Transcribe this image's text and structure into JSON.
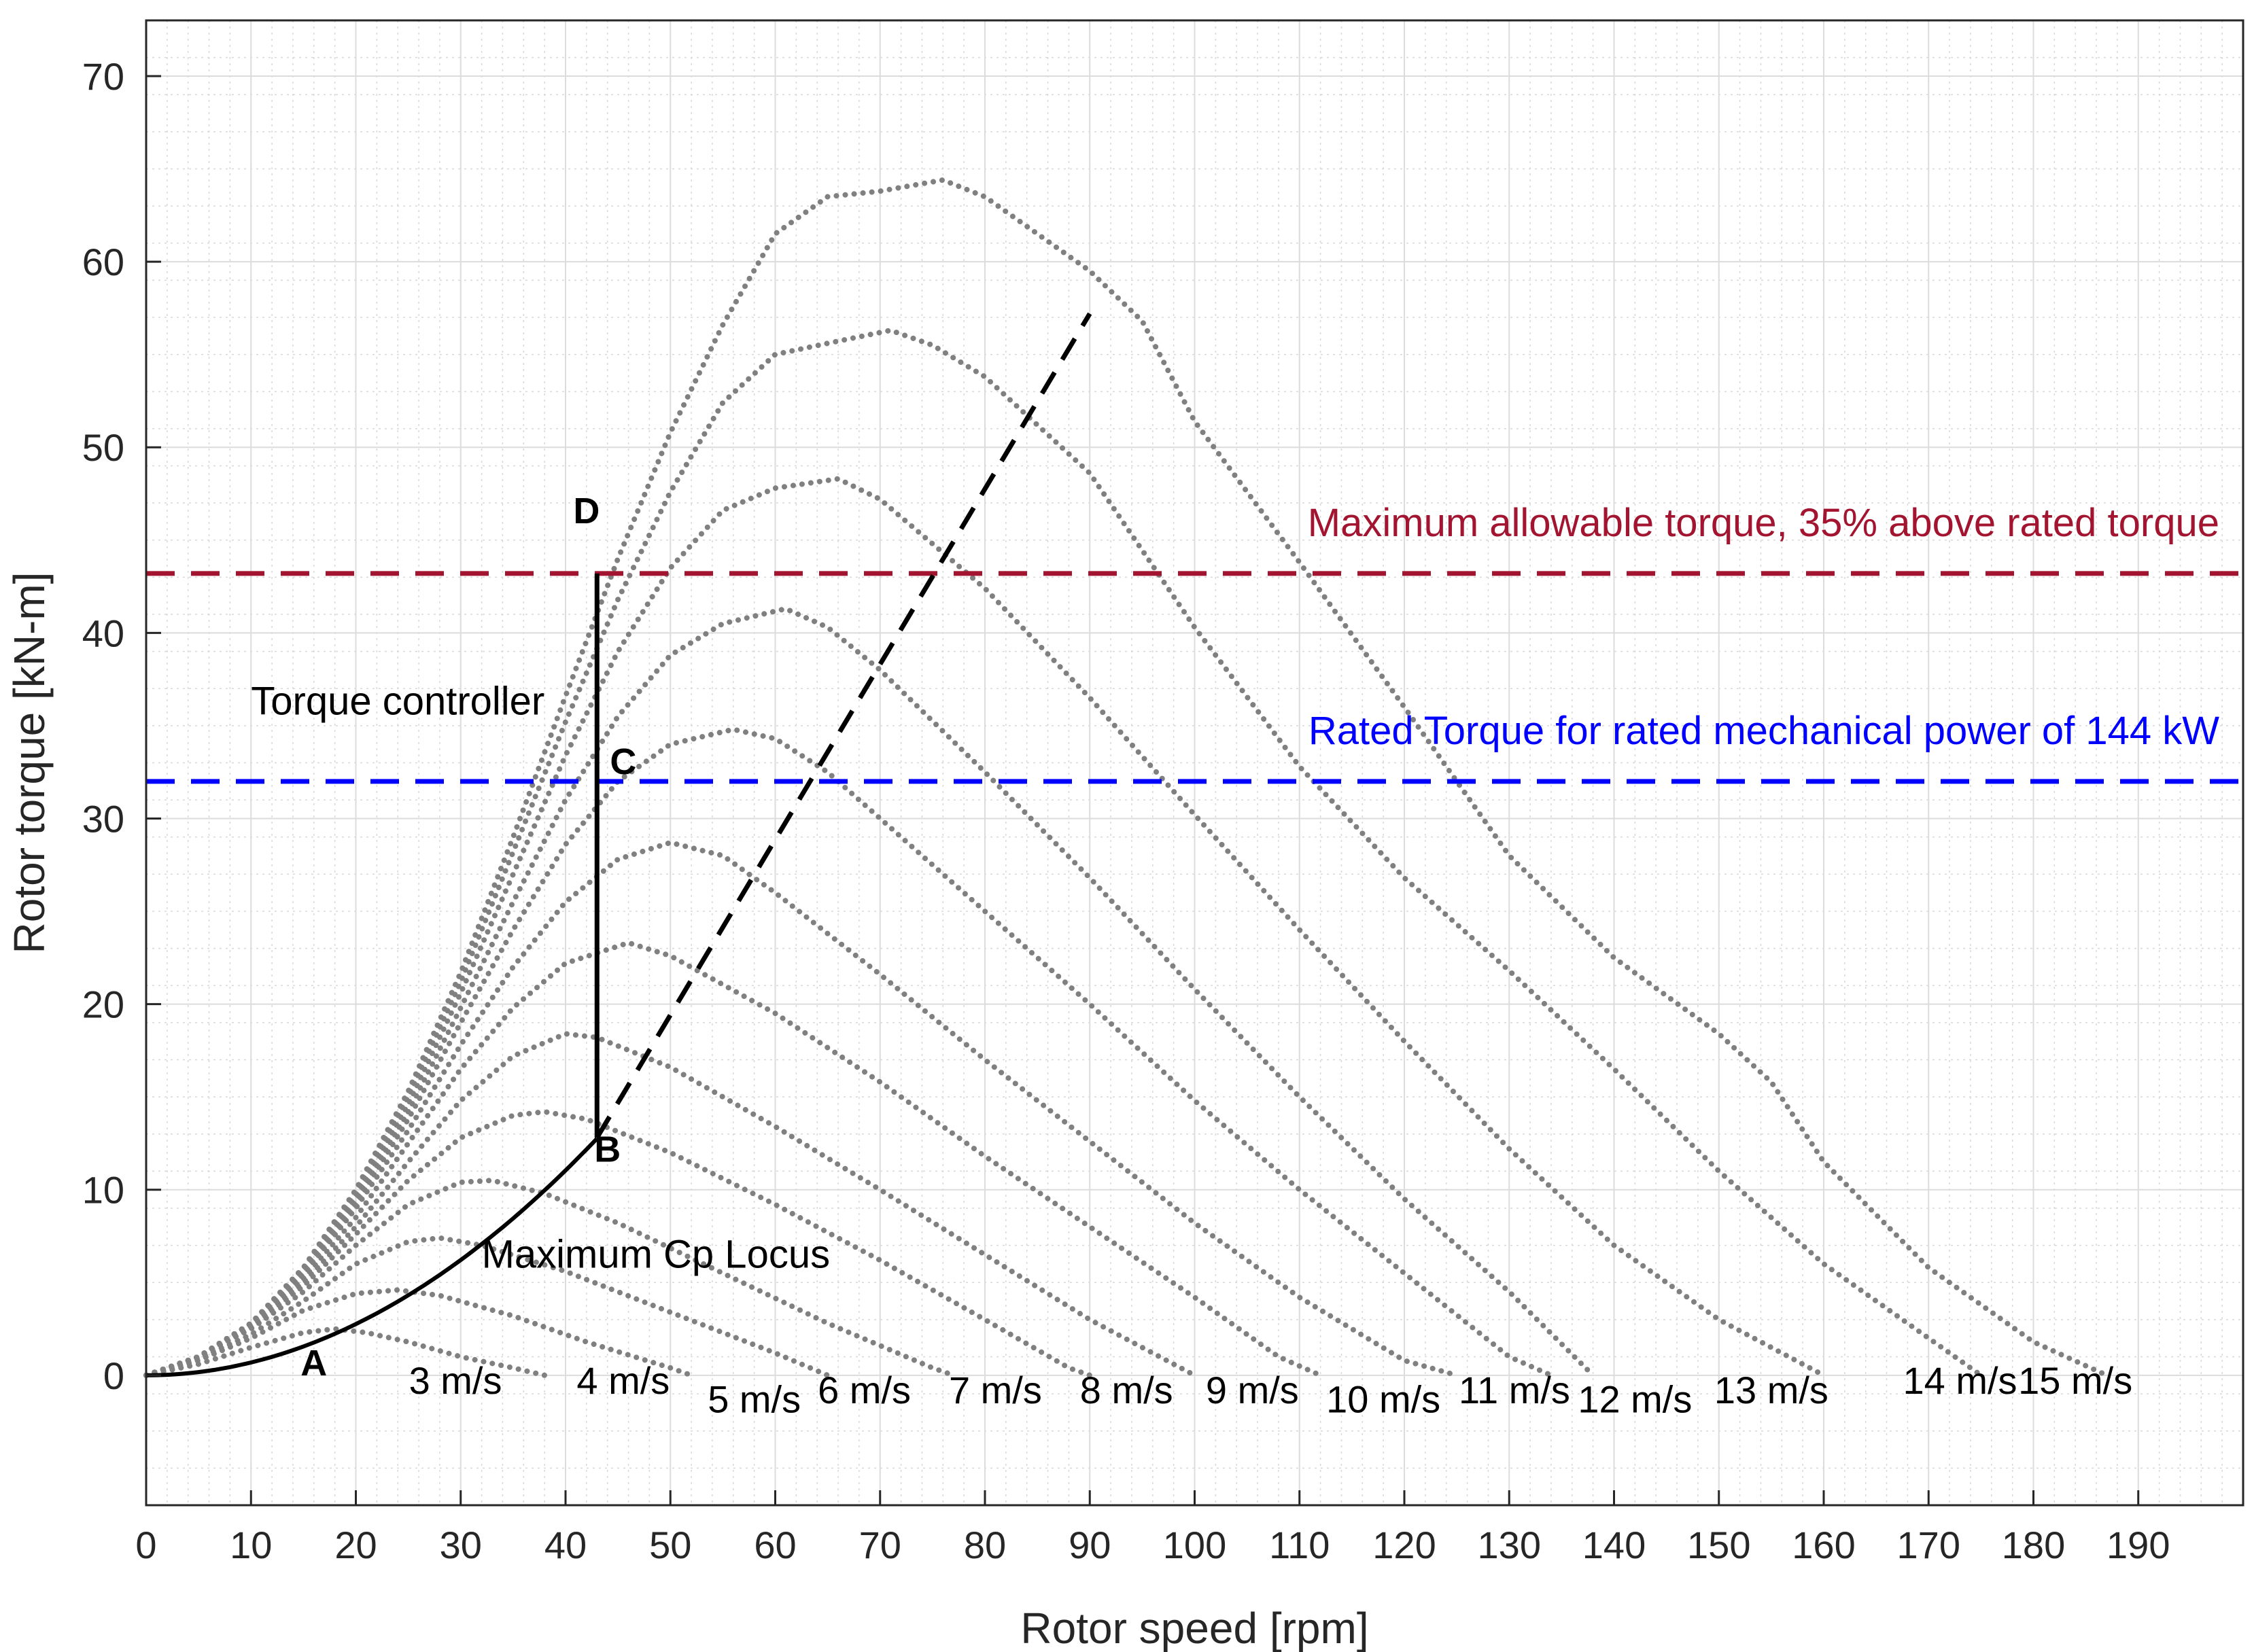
{
  "chart_data": {
    "type": "line",
    "title": "",
    "xlabel": "Rotor speed [rpm]",
    "ylabel": "Rotor torque [kN-m]",
    "xlim": [
      0,
      200
    ],
    "ylim": [
      -7,
      73
    ],
    "x_ticks": [
      0,
      10,
      20,
      30,
      40,
      50,
      60,
      70,
      80,
      90,
      100,
      110,
      120,
      130,
      140,
      150,
      160,
      170,
      180,
      190
    ],
    "y_ticks": [
      0,
      10,
      20,
      30,
      40,
      50,
      60,
      70
    ],
    "grid": true,
    "minor_grid": true,
    "colors": {
      "curve": "#808080",
      "max_torque": "#A2142F",
      "rated_torque": "#0000FF",
      "locus": "#000000"
    },
    "series": [
      {
        "name": "3 m/s",
        "label_pos": [
          29.5,
          -1
        ],
        "points": [
          [
            0,
            0
          ],
          [
            5,
            0.6
          ],
          [
            10,
            1.5
          ],
          [
            15,
            2.3
          ],
          [
            18,
            2.5
          ],
          [
            21,
            2.3
          ],
          [
            25,
            1.8
          ],
          [
            30,
            1
          ],
          [
            35,
            0.4
          ],
          [
            38,
            0
          ]
        ]
      },
      {
        "name": "4 m/s",
        "label_pos": [
          45.5,
          -1
        ],
        "points": [
          [
            0,
            0
          ],
          [
            5,
            0.8
          ],
          [
            10,
            2
          ],
          [
            15,
            3.5
          ],
          [
            20,
            4.4
          ],
          [
            24,
            4.6
          ],
          [
            28,
            4.3
          ],
          [
            35,
            3.2
          ],
          [
            42,
            1.8
          ],
          [
            50,
            0.4
          ],
          [
            52,
            0
          ]
        ]
      },
      {
        "name": "5 m/s",
        "label_pos": [
          58,
          -2
        ],
        "points": [
          [
            0,
            0
          ],
          [
            5,
            0.9
          ],
          [
            10,
            2.2
          ],
          [
            15,
            4
          ],
          [
            20,
            6
          ],
          [
            25,
            7.2
          ],
          [
            28,
            7.4
          ],
          [
            32,
            7
          ],
          [
            40,
            5.6
          ],
          [
            50,
            3.4
          ],
          [
            60,
            1.2
          ],
          [
            65,
            0
          ]
        ]
      },
      {
        "name": "6 m/s",
        "label_pos": [
          68.5,
          -1.5
        ],
        "points": [
          [
            0,
            0
          ],
          [
            5,
            1
          ],
          [
            10,
            2.5
          ],
          [
            15,
            4.5
          ],
          [
            20,
            7
          ],
          [
            25,
            9.2
          ],
          [
            30,
            10.4
          ],
          [
            33,
            10.5
          ],
          [
            38,
            9.8
          ],
          [
            45,
            8.2
          ],
          [
            55,
            5.5
          ],
          [
            65,
            2.8
          ],
          [
            75,
            0.4
          ],
          [
            77,
            0
          ]
        ]
      },
      {
        "name": "7 m/s",
        "label_pos": [
          81,
          -1.5
        ],
        "points": [
          [
            0,
            0
          ],
          [
            5,
            1
          ],
          [
            10,
            2.6
          ],
          [
            15,
            4.8
          ],
          [
            20,
            7.6
          ],
          [
            25,
            10.5
          ],
          [
            30,
            12.8
          ],
          [
            35,
            14
          ],
          [
            38,
            14.2
          ],
          [
            42,
            13.8
          ],
          [
            50,
            12
          ],
          [
            60,
            9.2
          ],
          [
            70,
            6.2
          ],
          [
            80,
            3
          ],
          [
            88,
            0.4
          ],
          [
            90,
            0
          ]
        ]
      },
      {
        "name": "8 m/s",
        "label_pos": [
          93.5,
          -1.5
        ],
        "points": [
          [
            0,
            0
          ],
          [
            5,
            1
          ],
          [
            10,
            2.7
          ],
          [
            15,
            5
          ],
          [
            20,
            8
          ],
          [
            25,
            11.5
          ],
          [
            30,
            14.8
          ],
          [
            35,
            17.2
          ],
          [
            40,
            18.4
          ],
          [
            43,
            18.2
          ],
          [
            50,
            16.6
          ],
          [
            60,
            13.4
          ],
          [
            70,
            10
          ],
          [
            80,
            6.5
          ],
          [
            90,
            3
          ],
          [
            100,
            0
          ]
        ]
      },
      {
        "name": "9 m/s",
        "label_pos": [
          105.5,
          -1.5
        ],
        "points": [
          [
            0,
            0
          ],
          [
            5,
            1
          ],
          [
            10,
            2.8
          ],
          [
            15,
            5.2
          ],
          [
            20,
            8.5
          ],
          [
            25,
            12.5
          ],
          [
            30,
            16.5
          ],
          [
            35,
            19.8
          ],
          [
            40,
            22.2
          ],
          [
            46,
            23.3
          ],
          [
            50,
            22.6
          ],
          [
            60,
            19.5
          ],
          [
            70,
            15.8
          ],
          [
            80,
            11.8
          ],
          [
            90,
            8
          ],
          [
            100,
            4.2
          ],
          [
            108,
            1
          ],
          [
            112,
            0
          ]
        ]
      },
      {
        "name": "10 m/s",
        "label_pos": [
          118,
          -2
        ],
        "points": [
          [
            0,
            0
          ],
          [
            5,
            1
          ],
          [
            10,
            2.8
          ],
          [
            15,
            5.4
          ],
          [
            20,
            9
          ],
          [
            25,
            13.2
          ],
          [
            30,
            17.8
          ],
          [
            35,
            22
          ],
          [
            40,
            25.5
          ],
          [
            45,
            27.8
          ],
          [
            50,
            28.7
          ],
          [
            55,
            28
          ],
          [
            60,
            26
          ],
          [
            70,
            21.6
          ],
          [
            80,
            17
          ],
          [
            90,
            12.6
          ],
          [
            100,
            8.2
          ],
          [
            110,
            4.2
          ],
          [
            120,
            0.8
          ],
          [
            125,
            0
          ]
        ]
      },
      {
        "name": "11 m/s",
        "label_pos": [
          130.5,
          -1.5
        ],
        "points": [
          [
            0,
            0
          ],
          [
            5,
            1
          ],
          [
            10,
            2.8
          ],
          [
            15,
            5.5
          ],
          [
            20,
            9.2
          ],
          [
            25,
            13.8
          ],
          [
            30,
            19
          ],
          [
            35,
            24
          ],
          [
            40,
            28.6
          ],
          [
            45,
            32
          ],
          [
            50,
            34
          ],
          [
            56,
            34.8
          ],
          [
            60,
            34.3
          ],
          [
            65,
            32.5
          ],
          [
            70,
            30
          ],
          [
            80,
            25
          ],
          [
            90,
            20
          ],
          [
            100,
            14.8
          ],
          [
            110,
            10
          ],
          [
            120,
            5.5
          ],
          [
            130,
            1
          ],
          [
            134,
            0
          ]
        ]
      },
      {
        "name": "12 m/s",
        "label_pos": [
          142,
          -2
        ],
        "points": [
          [
            0,
            0
          ],
          [
            5,
            1
          ],
          [
            10,
            2.8
          ],
          [
            15,
            5.6
          ],
          [
            20,
            9.4
          ],
          [
            25,
            14.2
          ],
          [
            30,
            19.8
          ],
          [
            35,
            25.5
          ],
          [
            40,
            31
          ],
          [
            45,
            35.5
          ],
          [
            50,
            38.8
          ],
          [
            55,
            40.5
          ],
          [
            61,
            41.3
          ],
          [
            65,
            40.3
          ],
          [
            70,
            38
          ],
          [
            80,
            32.5
          ],
          [
            90,
            26.8
          ],
          [
            100,
            20.8
          ],
          [
            110,
            15
          ],
          [
            120,
            9.5
          ],
          [
            130,
            4.5
          ],
          [
            138,
            0
          ]
        ]
      },
      {
        "name": "13 m/s",
        "label_pos": [
          155,
          -1.5
        ],
        "points": [
          [
            0,
            0
          ],
          [
            5,
            1
          ],
          [
            10,
            2.8
          ],
          [
            15,
            5.7
          ],
          [
            20,
            9.6
          ],
          [
            25,
            14.6
          ],
          [
            30,
            20.6
          ],
          [
            35,
            27
          ],
          [
            40,
            33.4
          ],
          [
            45,
            39
          ],
          [
            50,
            43.5
          ],
          [
            55,
            46.6
          ],
          [
            60,
            47.8
          ],
          [
            66,
            48.3
          ],
          [
            70,
            47.2
          ],
          [
            80,
            42.4
          ],
          [
            90,
            36.5
          ],
          [
            100,
            30.2
          ],
          [
            110,
            24
          ],
          [
            120,
            18
          ],
          [
            130,
            12.2
          ],
          [
            140,
            7
          ],
          [
            150,
            3
          ],
          [
            160,
            0
          ]
        ]
      },
      {
        "name": "14 m/s",
        "label_pos": [
          173,
          -1
        ],
        "points": [
          [
            0,
            0
          ],
          [
            5,
            1
          ],
          [
            10,
            2.8
          ],
          [
            15,
            5.8
          ],
          [
            20,
            9.8
          ],
          [
            25,
            15
          ],
          [
            30,
            21.2
          ],
          [
            35,
            28.2
          ],
          [
            40,
            35.2
          ],
          [
            45,
            41.8
          ],
          [
            50,
            47.6
          ],
          [
            55,
            52.4
          ],
          [
            60,
            55
          ],
          [
            65,
            55.6
          ],
          [
            71,
            56.3
          ],
          [
            75,
            55.5
          ],
          [
            80,
            53.8
          ],
          [
            90,
            48.6
          ],
          [
            100,
            40.3
          ],
          [
            110,
            32.8
          ],
          [
            120,
            26.8
          ],
          [
            130,
            21.8
          ],
          [
            140,
            16.5
          ],
          [
            150,
            11
          ],
          [
            160,
            6
          ],
          [
            170,
            2
          ],
          [
            175,
            0
          ]
        ]
      },
      {
        "name": "15 m/s",
        "label_pos": [
          184,
          -1
        ],
        "points": [
          [
            0,
            0
          ],
          [
            5,
            1
          ],
          [
            10,
            2.8
          ],
          [
            15,
            5.8
          ],
          [
            20,
            10
          ],
          [
            25,
            15.3
          ],
          [
            30,
            21.7
          ],
          [
            35,
            29
          ],
          [
            40,
            36.6
          ],
          [
            45,
            44
          ],
          [
            50,
            50.8
          ],
          [
            55,
            56.6
          ],
          [
            60,
            61.5
          ],
          [
            65,
            63.5
          ],
          [
            70,
            63.8
          ],
          [
            76,
            64.4
          ],
          [
            80,
            63.5
          ],
          [
            90,
            59.5
          ],
          [
            95,
            56.8
          ],
          [
            100,
            51.4
          ],
          [
            110,
            43.8
          ],
          [
            120,
            36
          ],
          [
            130,
            28
          ],
          [
            140,
            22.5
          ],
          [
            150,
            18.4
          ],
          [
            155,
            15.8
          ],
          [
            160,
            11.5
          ],
          [
            170,
            5.8
          ],
          [
            180,
            1.8
          ],
          [
            187,
            0
          ]
        ]
      }
    ],
    "reference_lines": [
      {
        "label": "Maximum allowable torque, 35% above rated torque",
        "y": 43.2
      },
      {
        "label": "Rated Torque for rated mechanical power of 144 kW",
        "y": 32
      }
    ],
    "max_cp_locus": {
      "label": "Maximum Cp Locus",
      "label_pos": [
        32,
        5.8
      ],
      "k": 0.0069,
      "x_end": 43
    },
    "max_cp_extension": {
      "points": [
        [
          43,
          12.8
        ],
        [
          90,
          57.2
        ]
      ]
    },
    "torque_controller": {
      "label": "Torque controller",
      "label_pos": [
        10,
        35.6
      ],
      "x": 43,
      "y_from": 12.8,
      "y_to": 43.2
    },
    "points": [
      {
        "label": "A",
        "x": 16,
        "y": 0.5,
        "label_pos": [
          16,
          0
        ]
      },
      {
        "label": "B",
        "x": 43,
        "y": 12.8,
        "label_pos": [
          44,
          11.5
        ]
      },
      {
        "label": "C",
        "x": 43,
        "y": 32,
        "label_pos": [
          45.5,
          32.4
        ]
      },
      {
        "label": "D",
        "x": 43,
        "y": 43.2,
        "label_pos": [
          42,
          45.9
        ]
      }
    ]
  }
}
